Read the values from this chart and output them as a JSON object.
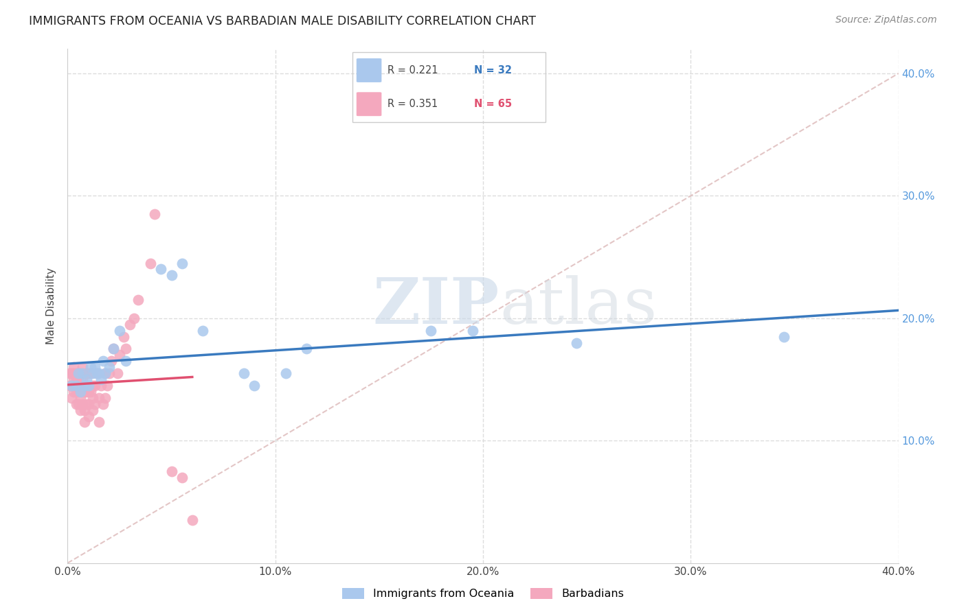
{
  "title": "IMMIGRANTS FROM OCEANIA VS BARBADIAN MALE DISABILITY CORRELATION CHART",
  "source": "Source: ZipAtlas.com",
  "ylabel": "Male Disability",
  "xlim": [
    0.0,
    0.4
  ],
  "ylim": [
    0.0,
    0.42
  ],
  "xtick_labels": [
    "0.0%",
    "",
    "10.0%",
    "",
    "20.0%",
    "",
    "30.0%",
    "",
    "40.0%"
  ],
  "xtick_vals": [
    0.0,
    0.05,
    0.1,
    0.15,
    0.2,
    0.25,
    0.3,
    0.35,
    0.4
  ],
  "ytick_labels": [
    "10.0%",
    "20.0%",
    "30.0%",
    "40.0%"
  ],
  "ytick_vals": [
    0.1,
    0.2,
    0.3,
    0.4
  ],
  "blue_color": "#aac8ed",
  "pink_color": "#f4a8be",
  "blue_line_color": "#3a7abf",
  "pink_line_color": "#e05070",
  "diag_line_color": "#e0c0c0",
  "watermark_zip": "ZIP",
  "watermark_atlas": "atlas",
  "blue_scatter_x": [
    0.002,
    0.004,
    0.005,
    0.006,
    0.007,
    0.008,
    0.009,
    0.01,
    0.011,
    0.012,
    0.013,
    0.014,
    0.015,
    0.016,
    0.017,
    0.018,
    0.02,
    0.022,
    0.025,
    0.028,
    0.045,
    0.05,
    0.055,
    0.065,
    0.085,
    0.09,
    0.105,
    0.115,
    0.175,
    0.195,
    0.245,
    0.345
  ],
  "blue_scatter_y": [
    0.145,
    0.145,
    0.155,
    0.14,
    0.155,
    0.145,
    0.15,
    0.145,
    0.16,
    0.155,
    0.16,
    0.155,
    0.155,
    0.15,
    0.165,
    0.155,
    0.16,
    0.175,
    0.19,
    0.165,
    0.24,
    0.235,
    0.245,
    0.19,
    0.155,
    0.145,
    0.155,
    0.175,
    0.19,
    0.19,
    0.18,
    0.185
  ],
  "pink_scatter_x": [
    0.001,
    0.001,
    0.002,
    0.002,
    0.002,
    0.003,
    0.003,
    0.003,
    0.003,
    0.004,
    0.004,
    0.004,
    0.004,
    0.005,
    0.005,
    0.005,
    0.005,
    0.006,
    0.006,
    0.006,
    0.006,
    0.007,
    0.007,
    0.007,
    0.007,
    0.008,
    0.008,
    0.008,
    0.009,
    0.009,
    0.009,
    0.01,
    0.01,
    0.01,
    0.01,
    0.011,
    0.011,
    0.012,
    0.012,
    0.012,
    0.013,
    0.013,
    0.014,
    0.015,
    0.015,
    0.016,
    0.017,
    0.018,
    0.018,
    0.019,
    0.02,
    0.021,
    0.022,
    0.024,
    0.025,
    0.027,
    0.028,
    0.03,
    0.032,
    0.034,
    0.04,
    0.042,
    0.05,
    0.055,
    0.06
  ],
  "pink_scatter_y": [
    0.145,
    0.155,
    0.135,
    0.145,
    0.155,
    0.14,
    0.15,
    0.155,
    0.16,
    0.13,
    0.14,
    0.15,
    0.155,
    0.13,
    0.14,
    0.145,
    0.155,
    0.125,
    0.135,
    0.145,
    0.155,
    0.13,
    0.14,
    0.15,
    0.16,
    0.115,
    0.125,
    0.14,
    0.13,
    0.14,
    0.155,
    0.12,
    0.13,
    0.14,
    0.155,
    0.14,
    0.155,
    0.125,
    0.135,
    0.145,
    0.13,
    0.145,
    0.155,
    0.115,
    0.135,
    0.145,
    0.13,
    0.135,
    0.155,
    0.145,
    0.155,
    0.165,
    0.175,
    0.155,
    0.17,
    0.185,
    0.175,
    0.195,
    0.2,
    0.215,
    0.245,
    0.285,
    0.075,
    0.07,
    0.035
  ]
}
